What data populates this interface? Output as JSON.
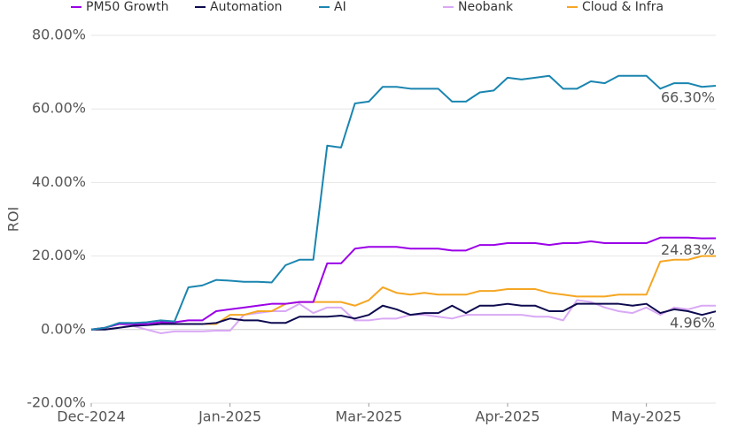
{
  "chart_data": {
    "type": "line",
    "y_label": "ROI",
    "x": [
      0,
      5,
      10,
      15,
      20,
      25,
      30,
      35,
      40,
      45,
      50,
      55,
      60,
      65,
      70,
      75,
      80,
      85,
      90,
      95,
      100,
      105,
      110,
      115,
      120,
      125,
      130,
      135,
      140,
      145,
      150,
      155,
      160,
      165,
      170,
      175,
      180,
      185,
      190,
      195,
      200,
      205,
      210,
      215,
      220,
      225
    ],
    "xlim": [
      0,
      225
    ],
    "xticks": [
      {
        "value": 0,
        "label": "Dec-2024"
      },
      {
        "value": 50,
        "label": "Jan-2025"
      },
      {
        "value": 100,
        "label": "Mar-2025"
      },
      {
        "value": 150,
        "label": "Apr-2025"
      },
      {
        "value": 200,
        "label": "May-2025"
      }
    ],
    "ylim": [
      -20,
      80
    ],
    "yticks": [
      {
        "value": -20,
        "label": "-20.00%"
      },
      {
        "value": 0,
        "label": "0.00%"
      },
      {
        "value": 20,
        "label": "20.00%"
      },
      {
        "value": 40,
        "label": "40.00%"
      },
      {
        "value": 60,
        "label": "60.00%"
      },
      {
        "value": 80,
        "label": "80.00%"
      }
    ],
    "grid": true,
    "legend": "top",
    "series": [
      {
        "name": "PM50 Growth",
        "color": "#9b00e8",
        "values": [
          0,
          0.5,
          1.5,
          1.5,
          1.5,
          2,
          2,
          2.5,
          2.5,
          5,
          5.5,
          6,
          6.5,
          7,
          7,
          7.5,
          7.5,
          18,
          18,
          22,
          22.5,
          22.5,
          22.5,
          22,
          22,
          22,
          21.5,
          21.5,
          23,
          23,
          23.5,
          23.5,
          23.5,
          23,
          23.5,
          23.5,
          24,
          23.5,
          23.5,
          23.5,
          23.5,
          25,
          25,
          25,
          24.8,
          24.83
        ]
      },
      {
        "name": "Automation",
        "color": "#0d0a4f",
        "values": [
          0,
          0,
          0.5,
          1,
          1.2,
          1.5,
          1.5,
          1.5,
          1.5,
          1.8,
          3,
          2.5,
          2.5,
          1.8,
          1.8,
          3.5,
          3.5,
          3.5,
          3.8,
          3,
          4,
          6.5,
          5.5,
          4,
          4.5,
          4.5,
          6.5,
          4.5,
          6.5,
          6.5,
          7,
          6.5,
          6.5,
          5,
          5,
          7,
          7,
          7,
          7,
          6.5,
          7,
          4.5,
          5.5,
          5,
          4,
          4.96
        ]
      },
      {
        "name": "AI",
        "color": "#1a85b0",
        "values": [
          0,
          0.5,
          1.8,
          1.8,
          2,
          2.5,
          2.2,
          11.5,
          12,
          13.5,
          13.3,
          13,
          13,
          12.8,
          17.5,
          19,
          19,
          50,
          49.5,
          61.5,
          62,
          66,
          66,
          65.5,
          65.5,
          65.5,
          62,
          62,
          64.5,
          65,
          68.5,
          68,
          68.5,
          69,
          65.5,
          65.5,
          67.5,
          67,
          69,
          69,
          69,
          65.5,
          67,
          67,
          66,
          66.3
        ]
      },
      {
        "name": "Neobank",
        "color": "#d9a9f5",
        "values": [
          0,
          0.5,
          1.5,
          1,
          0,
          -1,
          -0.5,
          -0.5,
          -0.5,
          -0.3,
          -0.3,
          4,
          4.5,
          5,
          5,
          7,
          4.5,
          6,
          6,
          2.5,
          2.5,
          3,
          3,
          4,
          4,
          3.5,
          3,
          4,
          4,
          4,
          4,
          4,
          3.5,
          3.5,
          2.5,
          8,
          7.5,
          6,
          5,
          4.5,
          6,
          4,
          6,
          5.5,
          6.5,
          6.5
        ]
      },
      {
        "name": "Cloud & Infra",
        "color": "#f5a623",
        "values": [
          0,
          0.5,
          1.5,
          1.5,
          1.5,
          1.5,
          1.5,
          1.5,
          1.5,
          1.5,
          4,
          4,
          5,
          5,
          7,
          7.5,
          7.5,
          7.5,
          7.5,
          6.5,
          8,
          11.5,
          10,
          9.5,
          10,
          9.5,
          9.5,
          9.5,
          10.5,
          10.5,
          11,
          11,
          11,
          10,
          9.5,
          9,
          9,
          9,
          9.5,
          9.5,
          9.5,
          18.5,
          19,
          19,
          20,
          20
        ]
      }
    ],
    "annotations": [
      {
        "text": "66.30%",
        "x": 225,
        "y": 66.3
      },
      {
        "text": "24.83%",
        "x": 225,
        "y": 24.83
      },
      {
        "text": "4.96%",
        "x": 225,
        "y": 4.96
      }
    ]
  }
}
